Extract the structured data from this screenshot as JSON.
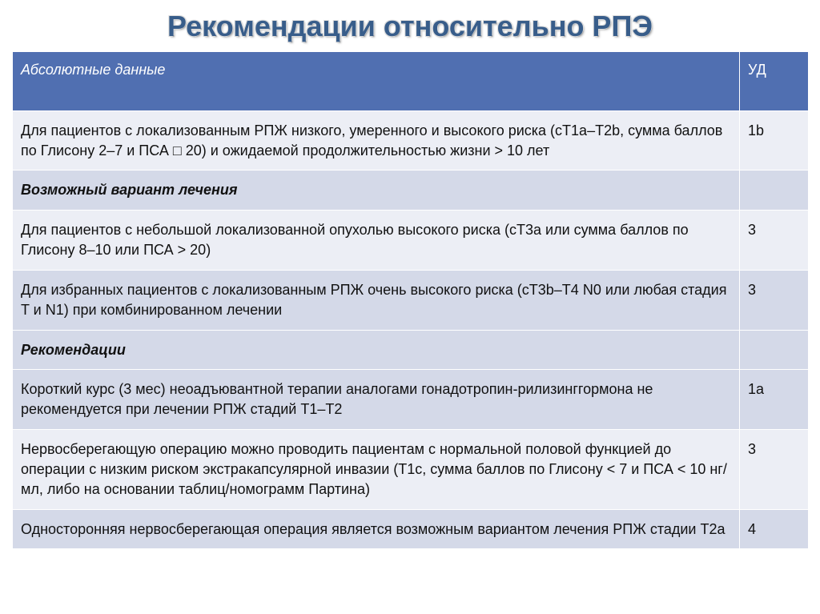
{
  "title": "Рекомендации относительно РПЭ",
  "headers": {
    "c1": "Абсолютные данные",
    "c2": "УД"
  },
  "sections": {
    "s2": "Возможный вариант лечения",
    "s3": "Рекомендации"
  },
  "rows": {
    "r1": {
      "text": "Для пациентов с локализованным РПЖ низкого, умеренного и высокого риска (cT1a–T2b, сумма баллов по Глисону 2–7 и ПСА □ 20) и ожидаемой продолжительностью жизни > 10 лет",
      "ud": "1b"
    },
    "r2": {
      "text": "Для пациентов с небольшой локализованной опухолью высокого риска (cT3a или сумма баллов по Глисону 8–10 или ПСА > 20)",
      "ud": "3"
    },
    "r3": {
      "text": "Для избранных пациентов с локализованным РПЖ очень высокого риска (cT3b–T4 N0 или любая стадия T и N1) при комбинированном лечении",
      "ud": "3"
    },
    "r4": {
      "text": "Короткий курс (3 мес) неоадъювантной терапии аналогами гонадотропин-рилизинггормона не рекомендуется при лечении РПЖ стадий T1–T2",
      "ud": "1a"
    },
    "r5": {
      "text": "Нервосберегающую операцию можно проводить пациентам с нормальной половой функцией до операции с низким риском экстракапсулярной инвазии (T1c, сумма баллов по Глисону < 7 и ПСА < 10 нг/мл, либо на основании таблиц/номограмм Партина)",
      "ud": "3"
    },
    "r6": {
      "text": "Односторонняя нервосберегающая операция является возможным вариантом лечения РПЖ стадии T2a",
      "ud": "4"
    }
  },
  "style": {
    "header_bg": "#506fb1",
    "header_fg": "#ffffff",
    "row_a_bg": "#eceef5",
    "row_b_bg": "#d4d9e8",
    "title_color": "#385d8a",
    "border_color": "#ffffff",
    "font_family": "Trebuchet MS"
  }
}
